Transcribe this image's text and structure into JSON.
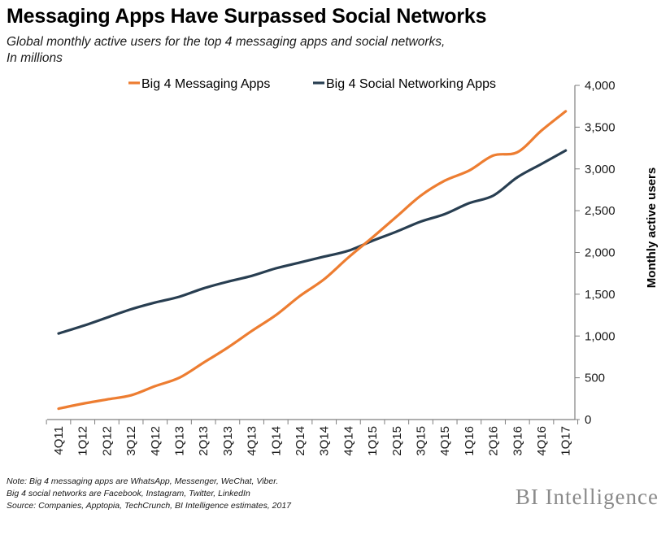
{
  "header": {
    "title": "Messaging Apps Have Surpassed Social Networks",
    "subtitle_line1": "Global monthly active users for the top 4 messaging apps and social networks,",
    "subtitle_line2": "In millions"
  },
  "footer": {
    "note1": "Note: Big 4 messaging apps are WhatsApp, Messenger, WeChat, Viber.",
    "note2": "Big 4 social networks are Facebook, Instagram, Twitter, LinkedIn",
    "source": "Source: Companies,  Apptopia, TechCrunch,  BI Intelligence estimates, 2017",
    "brand": "BI Intelligence"
  },
  "colors": {
    "messaging": "#ED7D31",
    "social": "#283E51",
    "axis": "#7f7f7f"
  },
  "chart_data": {
    "type": "line",
    "title": "Messaging Apps Have Surpassed Social Networks",
    "xlabel": "",
    "ylabel": "Monthly active users",
    "ylim": [
      0,
      4000
    ],
    "yticks": [
      0,
      500,
      1000,
      1500,
      2000,
      2500,
      3000,
      3500,
      4000
    ],
    "ytick_labels": [
      "0",
      "500",
      "1,000",
      "1,500",
      "2,000",
      "2,500",
      "3,000",
      "3,500",
      "4,000"
    ],
    "y_axis_side": "right",
    "legend_position": "top",
    "grid": false,
    "categories": [
      "4Q11",
      "1Q12",
      "2Q12",
      "3Q12",
      "4Q12",
      "1Q13",
      "2Q13",
      "3Q13",
      "4Q13",
      "1Q14",
      "2Q14",
      "3Q14",
      "4Q14",
      "1Q15",
      "2Q15",
      "3Q15",
      "4Q15",
      "1Q16",
      "2Q16",
      "3Q16",
      "4Q16",
      "1Q17"
    ],
    "series": [
      {
        "name": "Big 4 Messaging Apps",
        "color": "#ED7D31",
        "values": [
          130,
          190,
          240,
          290,
          400,
          500,
          680,
          860,
          1060,
          1250,
          1480,
          1680,
          1940,
          2180,
          2430,
          2680,
          2860,
          2980,
          3160,
          3200,
          3460,
          3690
        ]
      },
      {
        "name": "Big 4 Social Networking Apps",
        "color": "#283E51",
        "values": [
          1030,
          1120,
          1220,
          1320,
          1400,
          1470,
          1570,
          1650,
          1720,
          1810,
          1880,
          1950,
          2020,
          2140,
          2250,
          2370,
          2460,
          2590,
          2680,
          2900,
          3060,
          3220
        ]
      }
    ]
  }
}
